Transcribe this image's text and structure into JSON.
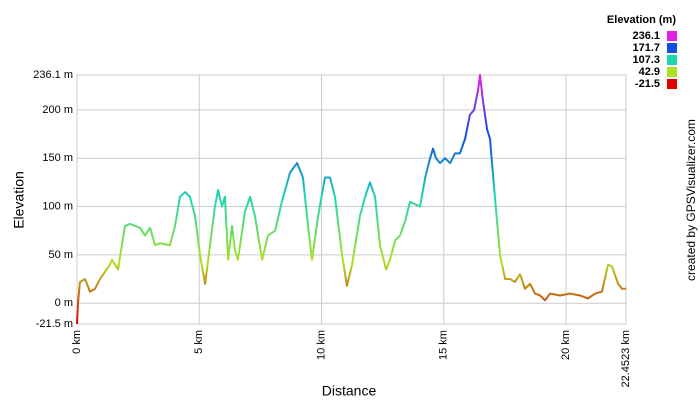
{
  "chart_data": {
    "type": "line",
    "y_label": "Elevation",
    "x_label": "Distance",
    "credit": "created by GPSVisualizer.com",
    "legend_title": "Elevation (m)",
    "color_scale": [
      {
        "value": 236.1,
        "color": "#e020e0"
      },
      {
        "value": 171.7,
        "color": "#1050e0"
      },
      {
        "value": 107.3,
        "color": "#20d8b0"
      },
      {
        "value": 42.9,
        "color": "#b0e020"
      },
      {
        "value": -21.5,
        "color": "#e00000"
      }
    ],
    "grid": true,
    "xlim": [
      0,
      22.4523
    ],
    "ylim": [
      -21.5,
      236.1
    ],
    "xticks": [
      {
        "value": 0,
        "label": "0 km"
      },
      {
        "value": 5,
        "label": "5 km"
      },
      {
        "value": 10,
        "label": "10 km"
      },
      {
        "value": 15,
        "label": "15 km"
      },
      {
        "value": 20,
        "label": "20 km"
      },
      {
        "value": 22.4523,
        "label": "22.4523 km"
      }
    ],
    "yticks": [
      {
        "value": -21.5,
        "label": "-21.5 m"
      },
      {
        "value": 0,
        "label": "0 m"
      },
      {
        "value": 50,
        "label": "50 m"
      },
      {
        "value": 100,
        "label": "100 m"
      },
      {
        "value": 150,
        "label": "150 m"
      },
      {
        "value": 200,
        "label": "200 m"
      },
      {
        "value": 236.1,
        "label": "236.1 m"
      }
    ],
    "x": [
      0,
      0.04,
      0.12,
      0.33,
      0.53,
      0.74,
      0.94,
      1.35,
      1.43,
      1.68,
      1.96,
      2.17,
      2.58,
      2.78,
      2.99,
      3.19,
      3.39,
      3.8,
      4.01,
      4.21,
      4.42,
      4.62,
      4.83,
      5.03,
      5.24,
      5.44,
      5.64,
      5.77,
      5.93,
      6.05,
      6.18,
      6.34,
      6.46,
      6.58,
      6.67,
      6.87,
      7.08,
      7.28,
      7.57,
      7.81,
      8.1,
      8.38,
      8.71,
      9.0,
      9.24,
      9.45,
      9.61,
      9.86,
      10.14,
      10.35,
      10.55,
      10.84,
      11.04,
      11.25,
      11.57,
      11.78,
      11.98,
      12.19,
      12.39,
      12.64,
      12.8,
      13.01,
      13.21,
      13.42,
      13.62,
      14.03,
      14.24,
      14.44,
      14.56,
      14.68,
      14.85,
      15.05,
      15.26,
      15.46,
      15.66,
      15.87,
      16.07,
      16.24,
      16.4,
      16.48,
      16.6,
      16.77,
      16.89,
      17.09,
      17.3,
      17.51,
      17.71,
      17.91,
      18.12,
      18.32,
      18.53,
      18.73,
      18.94,
      19.14,
      19.35,
      19.75,
      20.16,
      20.57,
      20.9,
      21.19,
      21.47,
      21.72,
      21.88,
      22.13,
      22.29,
      22.4523
    ],
    "values": [
      -21.5,
      0,
      22,
      25,
      12,
      15,
      25,
      40,
      45,
      35,
      80,
      82,
      78,
      70,
      78,
      60,
      62,
      60,
      80,
      110,
      115,
      110,
      90,
      50,
      20,
      60,
      100,
      117,
      100,
      110,
      45,
      80,
      55,
      45,
      60,
      95,
      110,
      90,
      45,
      70,
      75,
      105,
      135,
      145,
      130,
      80,
      45,
      90,
      130,
      130,
      110,
      50,
      18,
      40,
      90,
      110,
      125,
      110,
      60,
      35,
      45,
      65,
      70,
      85,
      105,
      100,
      130,
      150,
      160,
      150,
      145,
      150,
      145,
      155,
      155,
      170,
      195,
      200,
      220,
      236.1,
      210,
      180,
      170,
      110,
      50,
      25,
      25,
      22,
      30,
      15,
      20,
      10,
      8,
      3,
      10,
      8,
      10,
      8,
      5,
      10,
      12,
      40,
      38,
      20,
      15,
      15
    ]
  }
}
